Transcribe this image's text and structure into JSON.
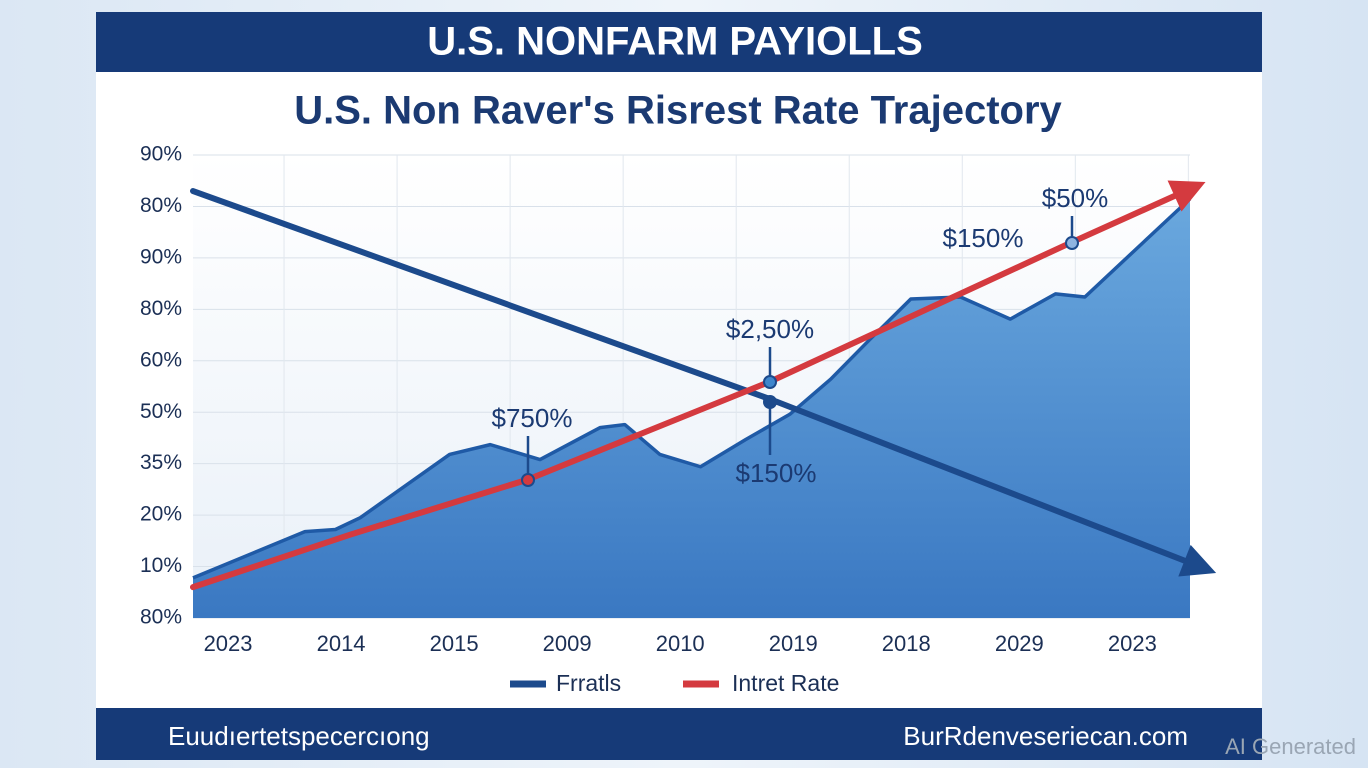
{
  "header": "U.S. NONFARM PAYIOLLS",
  "footer": {
    "left": "Euudıertetspecercıong",
    "right": "BurRdenveseriecan.com"
  },
  "watermark": "AI Generated",
  "chart_data": {
    "type": "line",
    "title": "U.S. Non Raver's Risrest Rate Trajectory",
    "categories": [
      "2023",
      "2014",
      "2015",
      "2009",
      "2010",
      "2019",
      "2018",
      "2029",
      "2023"
    ],
    "y_labels": [
      "80%",
      "10%",
      "20%",
      "35%",
      "50%",
      "60%",
      "80%",
      "90%",
      "80%",
      "90%"
    ],
    "xlim": [
      -0.31,
      8.51
    ],
    "ylim": [
      0,
      9
    ],
    "grid": true,
    "series": [
      {
        "name": "Frratls",
        "color": "#1c4a8c",
        "kind": "arrow-line",
        "x": [
          -0.31,
          4.8,
          8.56
        ],
        "values": [
          8.3,
          4.25,
          1.03
        ]
      },
      {
        "name": "Intret Rate",
        "color": "#d43a3f",
        "kind": "arrow-line",
        "x": [
          -0.31,
          1.08,
          2.65,
          4.8,
          7.47,
          8.47
        ],
        "values": [
          0.6,
          1.62,
          2.69,
          4.6,
          7.31,
          8.3
        ]
      },
      {
        "name": null,
        "color": "#3f86cc",
        "kind": "area",
        "x": [
          -0.31,
          0.68,
          0.95,
          1.17,
          1.96,
          2.32,
          2.76,
          3.29,
          3.51,
          3.82,
          4.18,
          4.58,
          4.97,
          5.33,
          5.68,
          6.04,
          6.48,
          6.92,
          7.32,
          7.58,
          8.51
        ],
        "values": [
          0.78,
          1.68,
          1.72,
          1.95,
          3.18,
          3.37,
          3.08,
          3.7,
          3.76,
          3.18,
          2.94,
          3.47,
          3.96,
          4.64,
          5.42,
          6.2,
          6.24,
          5.81,
          6.3,
          6.24,
          8.15
        ]
      }
    ],
    "annotations": [
      "$750%",
      "$2,50%",
      "$150%",
      "$150%",
      "$50%"
    ]
  }
}
